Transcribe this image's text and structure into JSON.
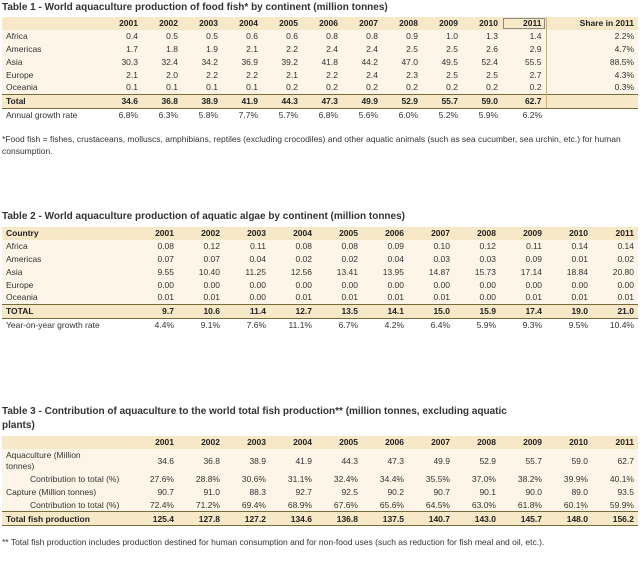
{
  "table1": {
    "title": "Table 1 - World aquaculture production of food fish* by continent (million tonnes)",
    "header": [
      "",
      "2001",
      "2002",
      "2003",
      "2004",
      "2005",
      "2006",
      "2007",
      "2008",
      "2009",
      "2010",
      "2011",
      "Share in 2011"
    ],
    "rows": [
      [
        "Africa",
        "0.4",
        "0.5",
        "0.5",
        "0.6",
        "0.6",
        "0.8",
        "0.8",
        "0.9",
        "1.0",
        "1.3",
        "1.4",
        "2.2%"
      ],
      [
        "Americas",
        "1.7",
        "1.8",
        "1.9",
        "2.1",
        "2.2",
        "2.4",
        "2.4",
        "2.5",
        "2.5",
        "2.6",
        "2.9",
        "4.7%"
      ],
      [
        "Asia",
        "30.3",
        "32.4",
        "34.2",
        "36.9",
        "39.2",
        "41.8",
        "44.2",
        "47.0",
        "49.5",
        "52.4",
        "55.5",
        "88.5%"
      ],
      [
        "Europe",
        "2.1",
        "2.0",
        "2.2",
        "2.2",
        "2.1",
        "2.2",
        "2.4",
        "2.3",
        "2.5",
        "2.5",
        "2.7",
        "4.3%"
      ],
      [
        "Oceania",
        "0.1",
        "0.1",
        "0.1",
        "0.1",
        "0.2",
        "0.2",
        "0.2",
        "0.2",
        "0.2",
        "0.2",
        "0.2",
        "0.3%"
      ]
    ],
    "total": [
      "Total",
      "34.6",
      "36.8",
      "38.9",
      "41.9",
      "44.3",
      "47.3",
      "49.9",
      "52.9",
      "55.7",
      "59.0",
      "62.7",
      ""
    ],
    "growth": [
      "Annual growth rate",
      "6.8%",
      "6.3%",
      "5.8%",
      "7.7%",
      "5.7%",
      "6.8%",
      "5.6%",
      "6.0%",
      "5.2%",
      "5.9%",
      "6.2%",
      ""
    ],
    "note": "*Food fish = fishes, crustaceans, molluscs, amphibians, reptiles (excluding crocodiles) and other aquatic animals (such as sea cucumber, sea urchin, etc.) for human consumption."
  },
  "table2": {
    "title": "Table 2 - World aquaculture production of aquatic algae by continent (million tonnes)",
    "header": [
      "Country",
      "2001",
      "2002",
      "2003",
      "2004",
      "2005",
      "2006",
      "2007",
      "2008",
      "2009",
      "2010",
      "2011"
    ],
    "rows": [
      [
        "Africa",
        "0.08",
        "0.12",
        "0.11",
        "0.08",
        "0.08",
        "0.09",
        "0.10",
        "0.12",
        "0.11",
        "0.14",
        "0.14"
      ],
      [
        "Americas",
        "0.07",
        "0.07",
        "0.04",
        "0.02",
        "0.02",
        "0.04",
        "0.03",
        "0.03",
        "0.09",
        "0.01",
        "0.02"
      ],
      [
        "Asia",
        "9.55",
        "10.40",
        "11.25",
        "12.56",
        "13.41",
        "13.95",
        "14.87",
        "15.73",
        "17.14",
        "18.84",
        "20.80"
      ],
      [
        "Europe",
        "0.00",
        "0.00",
        "0.00",
        "0.00",
        "0.00",
        "0.00",
        "0.00",
        "0.00",
        "0.00",
        "0.00",
        "0.00"
      ],
      [
        "Oceania",
        "0.01",
        "0.01",
        "0.00",
        "0.01",
        "0.01",
        "0.01",
        "0.01",
        "0.00",
        "0.01",
        "0.01",
        "0.01"
      ]
    ],
    "total": [
      "TOTAL",
      "9.7",
      "10.6",
      "11.4",
      "12.7",
      "13.5",
      "14.1",
      "15.0",
      "15.9",
      "17.4",
      "19.0",
      "21.0"
    ],
    "growth": [
      "Year-on-year growth rate",
      "4.4%",
      "9.1%",
      "7.6%",
      "11.1%",
      "6.7%",
      "4.2%",
      "6.4%",
      "5.9%",
      "9.3%",
      "9.5%",
      "10.4%"
    ]
  },
  "table3": {
    "title_line1": "Table 3 - Contribution of aquaculture to the world total fish production** (million tonnes, excluding aquatic",
    "title_line2": "plants)",
    "header": [
      "",
      "2001",
      "2002",
      "2003",
      "2004",
      "2005",
      "2006",
      "2007",
      "2008",
      "2009",
      "2010",
      "2011"
    ],
    "aquaculture_label_1": "Aquaculture (Million",
    "aquaculture_label_2": "tonnes)",
    "aquaculture": [
      "34.6",
      "36.8",
      "38.9",
      "41.9",
      "44.3",
      "47.3",
      "49.9",
      "52.9",
      "55.7",
      "59.0",
      "62.7"
    ],
    "aq_contrib": [
      "Contribution to total (%)",
      "27.6%",
      "28.8%",
      "30.6%",
      "31.1%",
      "32.4%",
      "34.4%",
      "35.5%",
      "37.0%",
      "38.2%",
      "39.9%",
      "40.1%"
    ],
    "capture": [
      "Capture (Million tonnes)",
      "90.7",
      "91.0",
      "88.3",
      "92.7",
      "92.5",
      "90.2",
      "90.7",
      "90.1",
      "90.0",
      "89.0",
      "93.5"
    ],
    "cap_contrib": [
      "Contribution to total (%)",
      "72.4%",
      "71.2%",
      "69.4%",
      "68.9%",
      "67.6%",
      "65.6%",
      "64.5%",
      "63.0%",
      "61.8%",
      "60.1%",
      "59.9%"
    ],
    "total": [
      "Total fish production",
      "125.4",
      "127.8",
      "127.2",
      "134.6",
      "136.8",
      "137.5",
      "140.7",
      "143.0",
      "145.7",
      "148.0",
      "156.2"
    ],
    "note": "** Total fish production includes production destined for human consumption and for non-food uses (such as reduction for fish meal and oil, etc.)."
  }
}
